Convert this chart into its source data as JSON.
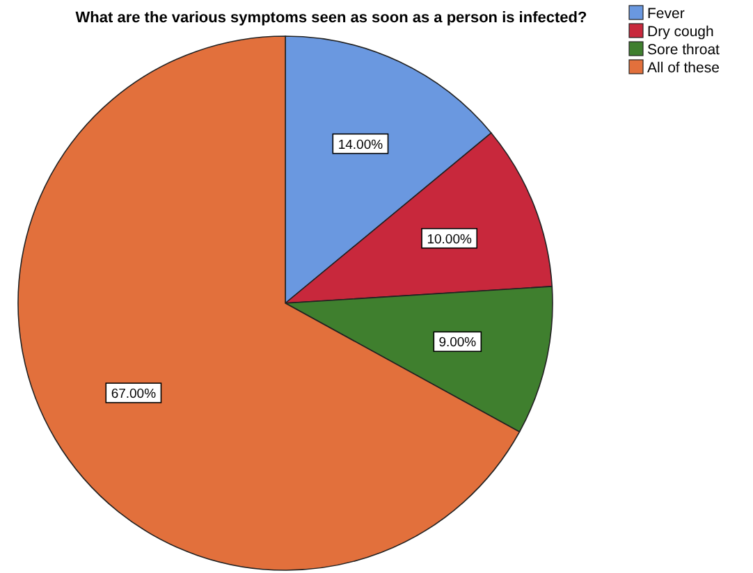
{
  "chart_data": {
    "type": "pie",
    "title": "What are the various symptoms seen as soon as a person is infected?",
    "categories": [
      "Fever",
      "Dry cough",
      "Sore throat",
      "All of these"
    ],
    "values": [
      14,
      10,
      9,
      67
    ],
    "value_labels": [
      "14.00%",
      "10.00%",
      "9.00%",
      "67.00%"
    ],
    "colors": [
      "#6a98e0",
      "#c8283c",
      "#3f7f2e",
      "#e2703c"
    ],
    "legend": "top right"
  }
}
